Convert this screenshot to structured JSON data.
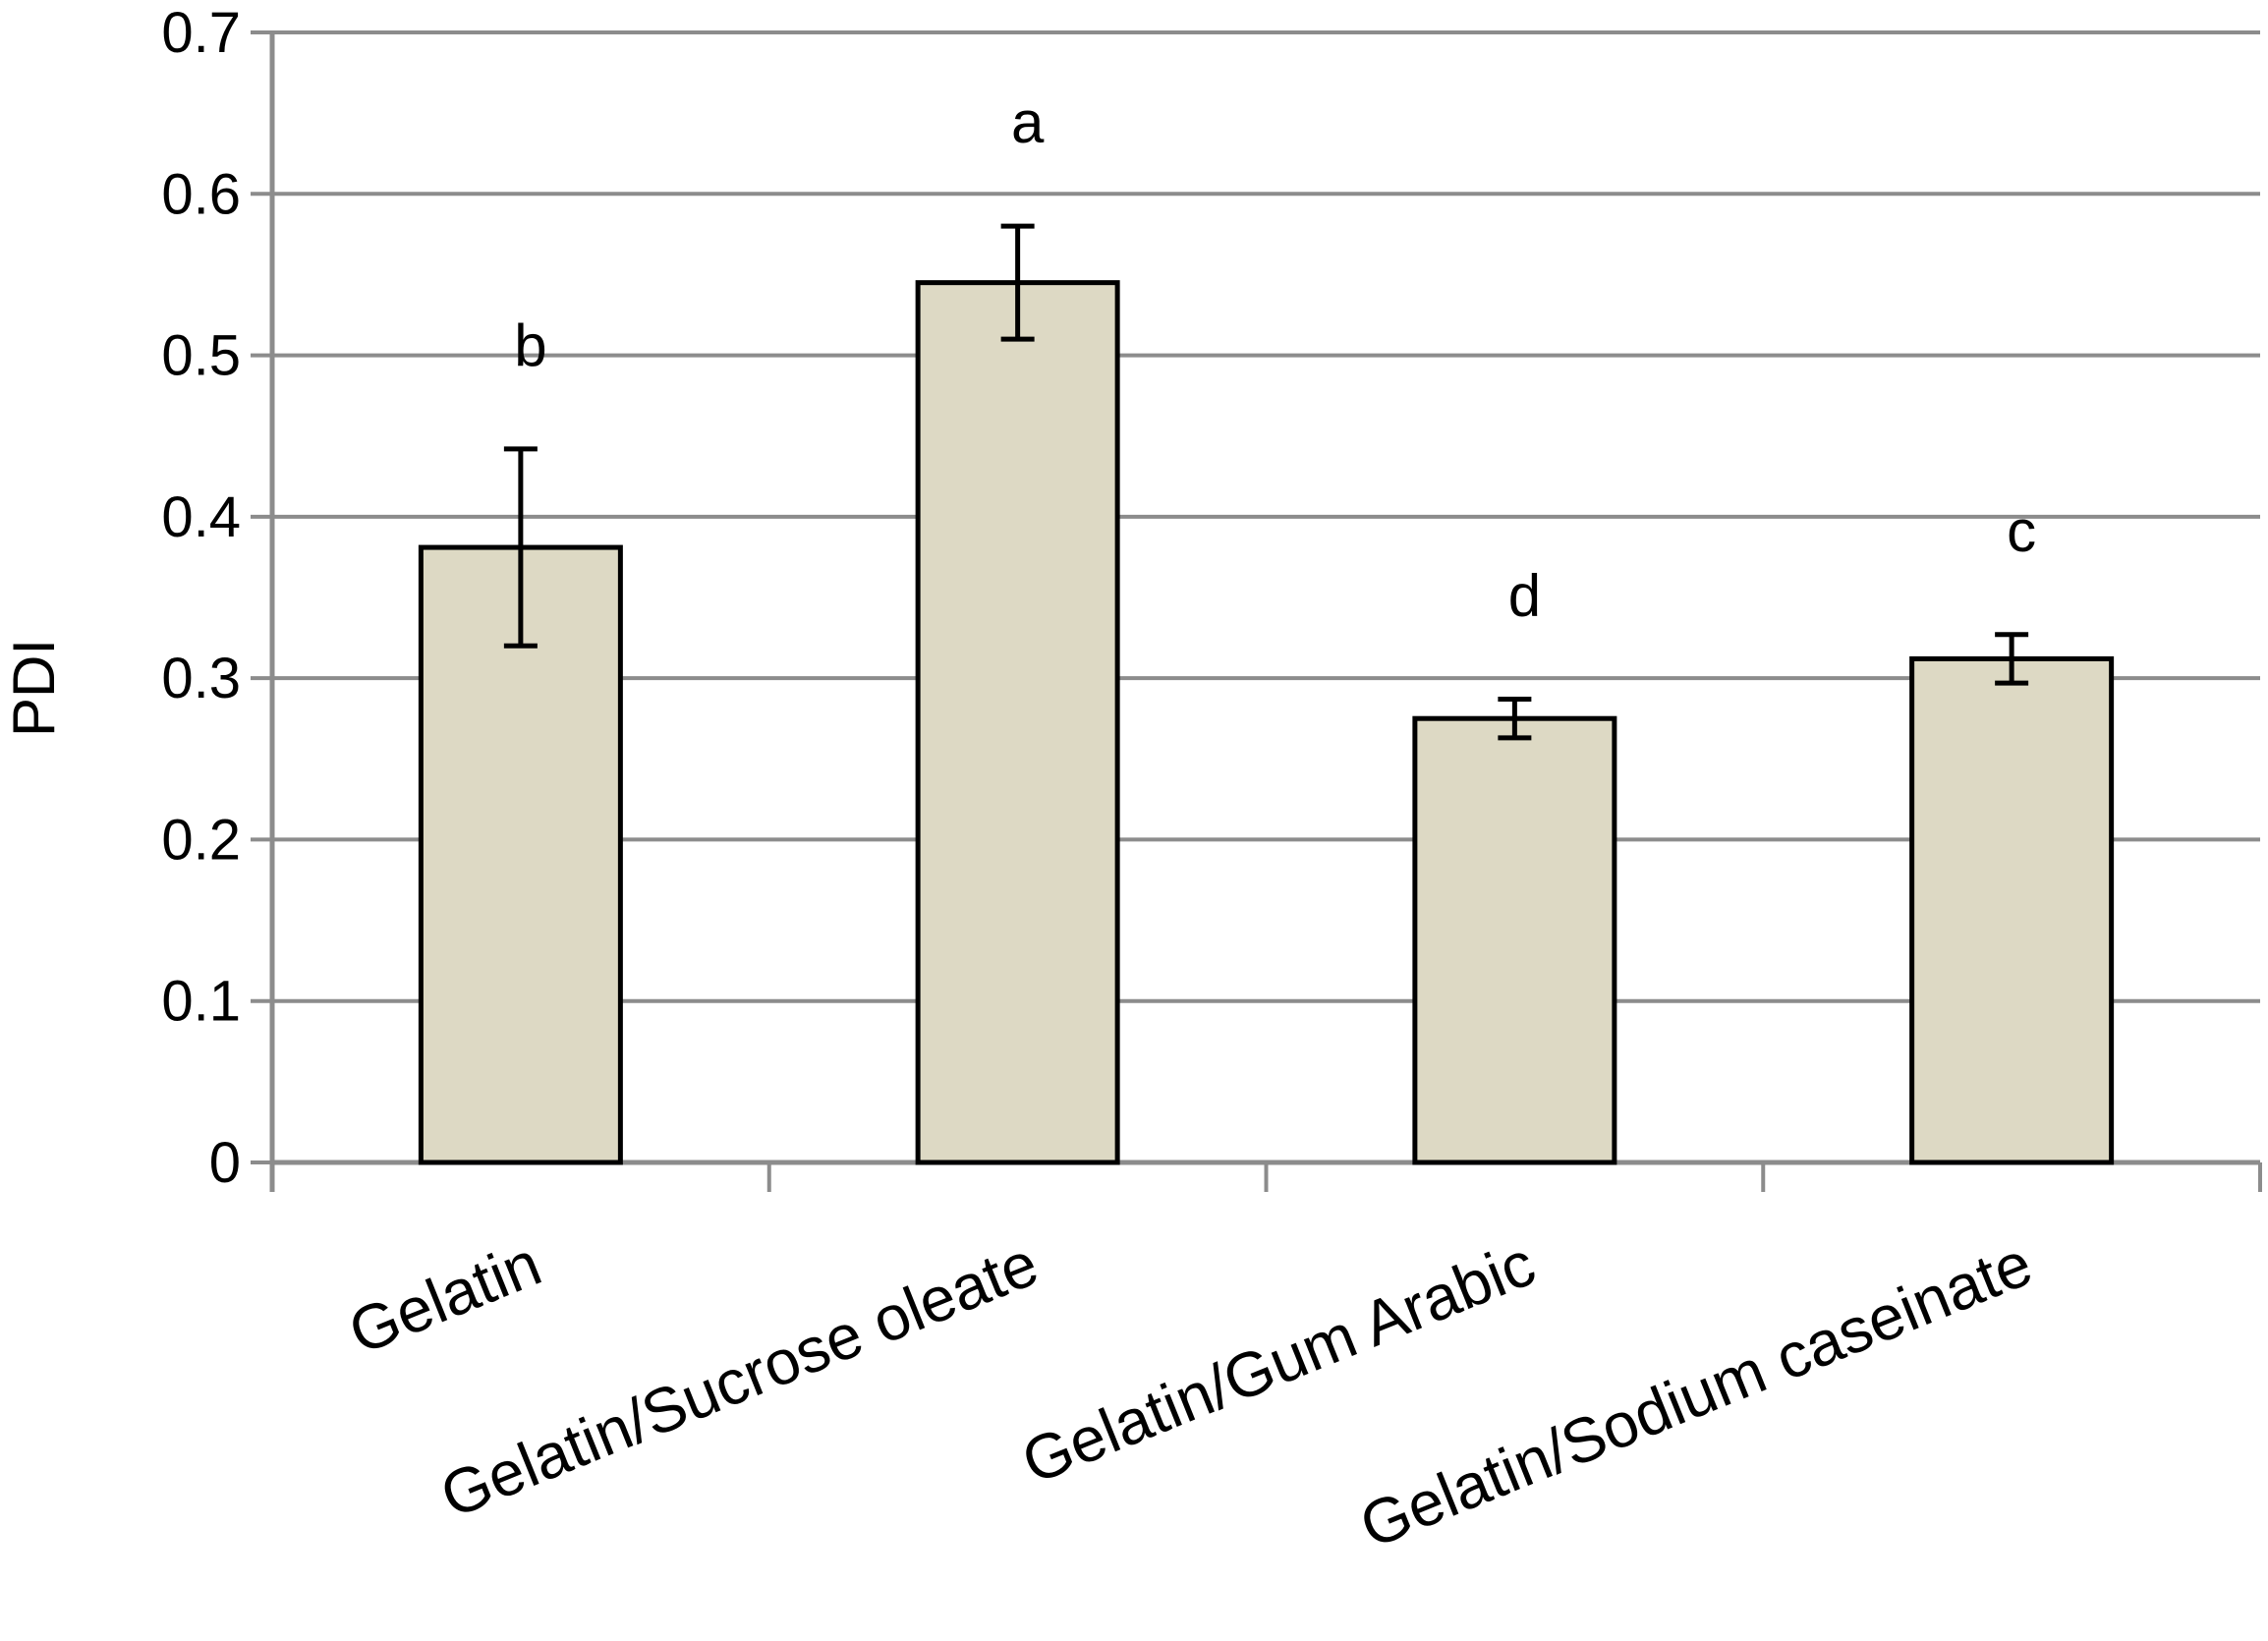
{
  "chart_data": {
    "type": "bar",
    "title": "",
    "xlabel": "",
    "ylabel": "PDI",
    "ylim": [
      0,
      0.7
    ],
    "yticks": [
      "0",
      "0.1",
      "0.2",
      "0.3",
      "0.4",
      "0.5",
      "0.6",
      "0.7"
    ],
    "grid": true,
    "categories": [
      "Gelatin",
      "Gelatin/Sucrose oleate",
      "Gelatin/Gum Arabic",
      "Gelatin/Sodium caseinate"
    ],
    "values": [
      0.381,
      0.545,
      0.275,
      0.312
    ],
    "errors": [
      0.061,
      0.035,
      0.012,
      0.015
    ],
    "significance_letters": [
      "b",
      "a",
      "d",
      "c"
    ],
    "colors": {
      "bar_fill": "#ddd9c4",
      "bar_stroke": "#000000",
      "grid": "#8c8c8c",
      "axis": "#8c8c8c"
    }
  }
}
